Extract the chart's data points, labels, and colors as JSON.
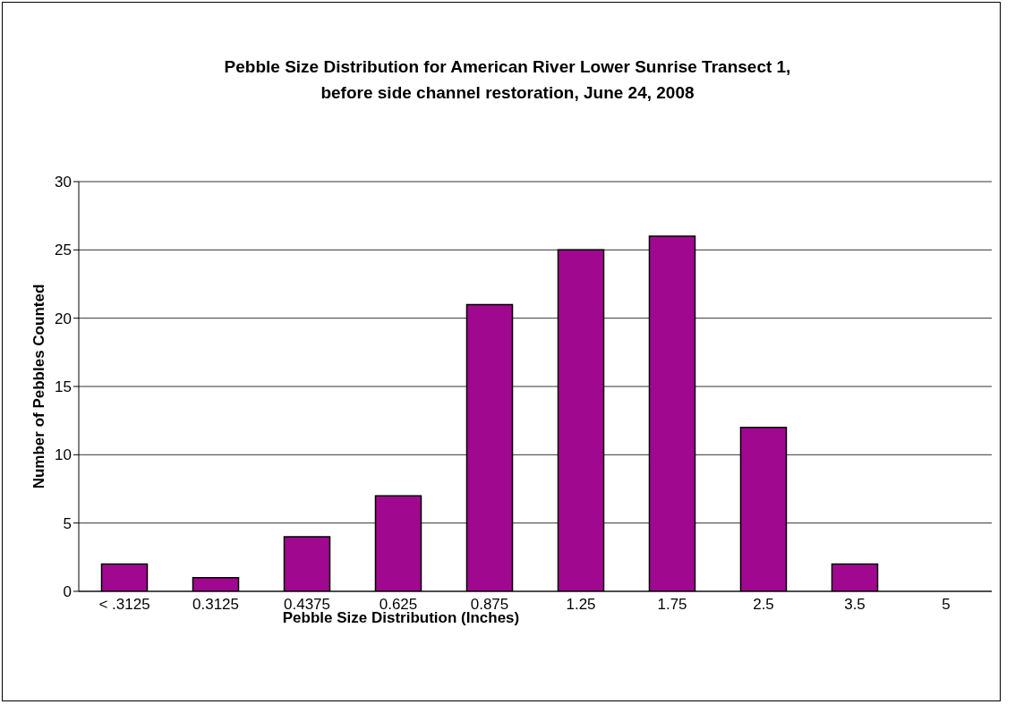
{
  "chart_data": {
    "type": "bar",
    "title": "Pebble Size Distribution for American River Lower Sunrise Transect 1,\nbefore side channel restoration, June 24, 2008",
    "xlabel": "Pebble Size Distribution (Inches)",
    "ylabel": "Number of Pebbles Counted",
    "categories": [
      "< .3125",
      "0.3125",
      "0.4375",
      "0.625",
      "0.875",
      "1.25",
      "1.75",
      "2.5",
      "3.5",
      "5"
    ],
    "series": [
      {
        "color": "#a0088f",
        "values": [
          2,
          1,
          4,
          7,
          21,
          25,
          26,
          12,
          2,
          0
        ]
      }
    ],
    "ylim": [
      0,
      30
    ],
    "yticks": [
      0,
      5,
      10,
      15,
      20,
      25,
      30
    ],
    "grid": "y",
    "legend": false
  }
}
